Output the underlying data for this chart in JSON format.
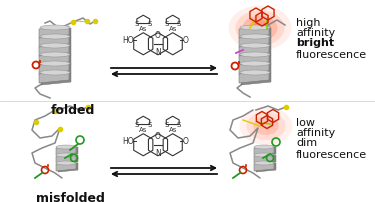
{
  "background_color": "#ffffff",
  "top_right_text": [
    "high",
    "affinity",
    "bright",
    "fluorescence"
  ],
  "bottom_right_text": [
    "low",
    "affinity",
    "dim",
    "fluorescence"
  ],
  "top_left_label": "folded",
  "bottom_left_label": "misfolded",
  "helix_color": "#aaaaaa",
  "helix_edge": "#777777",
  "coil_color": "#888888",
  "yellow_color": "#ddcc00",
  "magenta_color": "#cc44cc",
  "red_color": "#cc2200",
  "green_color": "#229922",
  "dye_color": "#cc2200",
  "glow_color1": "#ff3300",
  "glow_color2": "#ff6633",
  "arrow_color": "#111111",
  "text_color": "#111111",
  "label_fontsize": 9,
  "annot_fontsize": 8,
  "fig_width": 3.75,
  "fig_height": 2.02,
  "dpi": 100
}
